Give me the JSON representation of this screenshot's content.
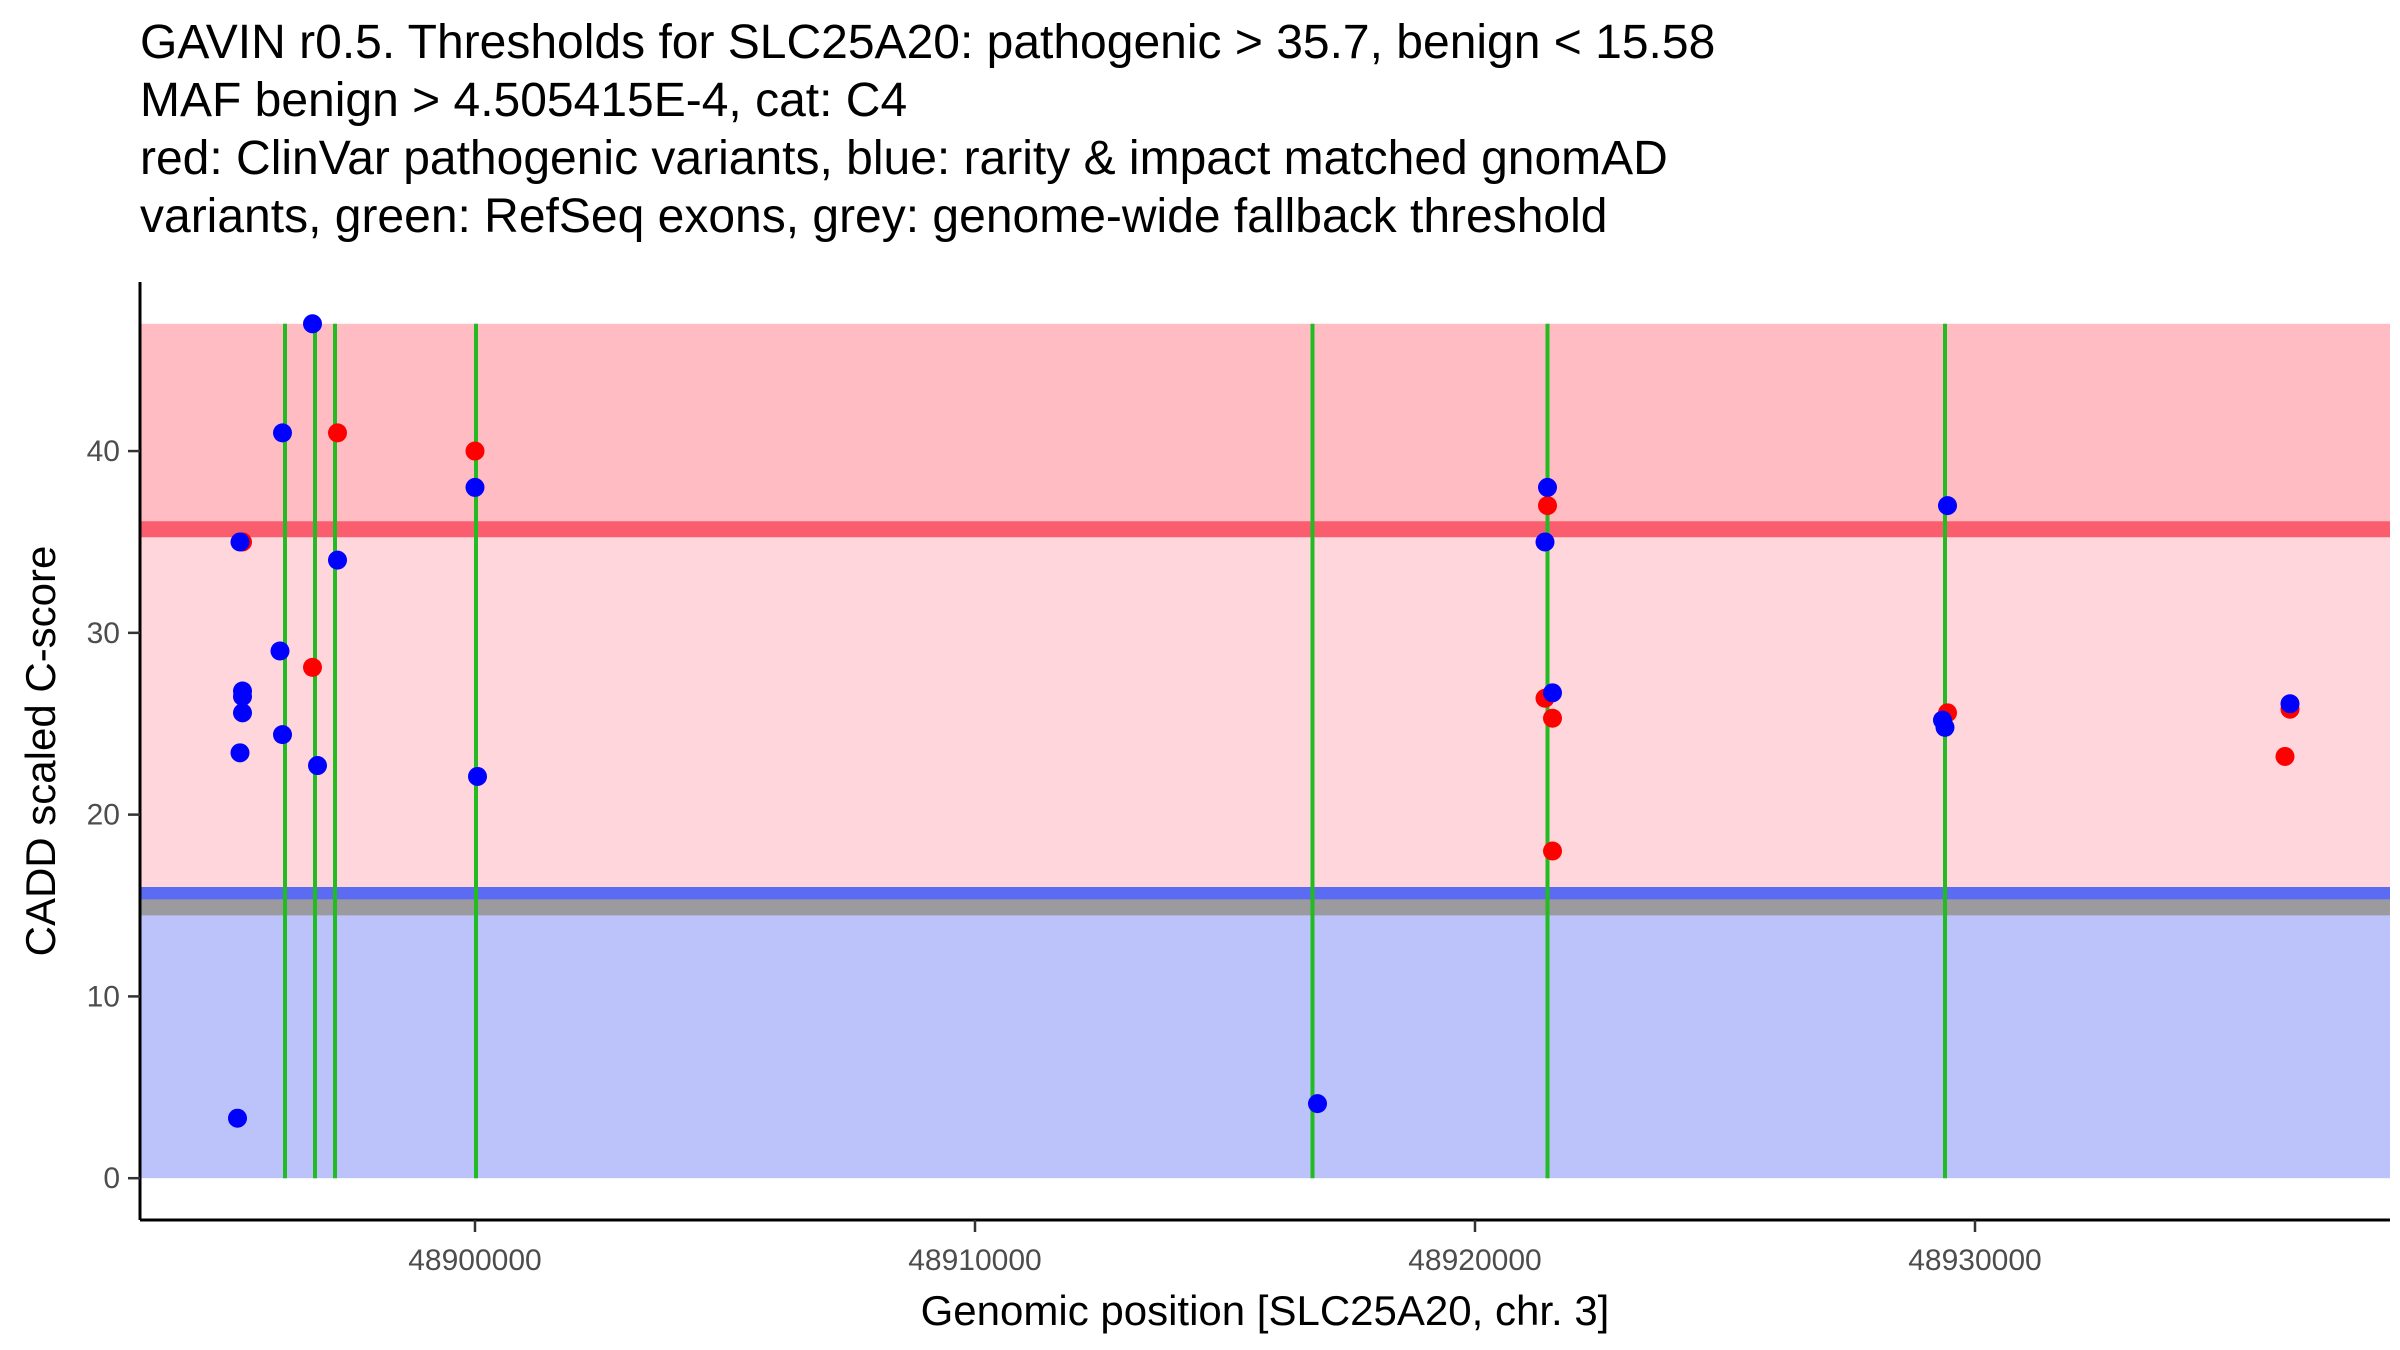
{
  "chart_data": {
    "type": "scatter",
    "title_lines": [
      "GAVIN r0.5. Thresholds for SLC25A20: pathogenic > 35.7, benign < 15.58",
      "MAF benign > 4.505415E-4, cat: C4",
      "red: ClinVar pathogenic variants, blue: rarity & impact matched gnomAD",
      "variants, green: RefSeq exons, grey: genome-wide fallback threshold"
    ],
    "xlabel": "Genomic position [SLC25A20, chr. 3]",
    "ylabel": "CADD scaled C-score",
    "xlim": [
      48893300,
      48938300
    ],
    "ylim": [
      -2.3,
      49.3
    ],
    "x_ticks": [
      48900000,
      48910000,
      48920000,
      48930000
    ],
    "y_ticks": [
      0,
      10,
      20,
      30,
      40
    ],
    "grid": false,
    "regions": [
      {
        "name": "pathogenic-region",
        "from": 35.7,
        "to": 47,
        "color": "#ffbcc2"
      },
      {
        "name": "middle-region",
        "from": 15.58,
        "to": 35.7,
        "color": "#ffd6dc"
      },
      {
        "name": "benign-region",
        "from": 0,
        "to": 15.58,
        "color": "#bcc2fa"
      }
    ],
    "threshold_lines": [
      {
        "name": "pathogenic-threshold",
        "value": 35.7,
        "color": "#fa5e6e"
      },
      {
        "name": "benign-threshold",
        "value": 15.58,
        "color": "#5c6cf2"
      },
      {
        "name": "fallback-threshold",
        "value": 14.9,
        "color": "#9b9b9f"
      }
    ],
    "exons": [
      {
        "x": 48896200,
        "color": "#22bb22"
      },
      {
        "x": 48896800,
        "color": "#22bb22"
      },
      {
        "x": 48897200,
        "color": "#22bb22"
      },
      {
        "x": 48900020,
        "color": "#22bb22"
      },
      {
        "x": 48916750,
        "color": "#22bb22"
      },
      {
        "x": 48921450,
        "color": "#22bb22"
      },
      {
        "x": 48929400,
        "color": "#22bb22"
      }
    ],
    "series": [
      {
        "name": "ClinVar pathogenic variants",
        "color": "#ff0000",
        "x": [
          48895350,
          48896750,
          48897250,
          48900000,
          48921450,
          48921400,
          48921550,
          48921550,
          48929450,
          48936200,
          48936300
        ],
        "y": [
          35,
          28.1,
          41,
          40,
          37,
          26.4,
          25.3,
          18,
          25.6,
          23.2,
          25.8
        ]
      },
      {
        "name": "rarity & impact matched gnomAD variants",
        "color": "#0000ff",
        "x": [
          48895300,
          48895350,
          48895350,
          48895350,
          48895300,
          48895250,
          48896150,
          48896100,
          48896150,
          48896750,
          48896850,
          48897250,
          48900000,
          48900050,
          48916850,
          48921450,
          48921400,
          48921550,
          48929350,
          48929400,
          48929450,
          48936300
        ],
        "y": [
          35,
          26.8,
          26.5,
          25.6,
          23.4,
          3.3,
          41,
          29,
          24.4,
          47,
          22.7,
          34,
          38,
          22.1,
          4.1,
          38,
          35,
          26.7,
          25.2,
          24.8,
          37,
          26.1
        ]
      }
    ]
  }
}
